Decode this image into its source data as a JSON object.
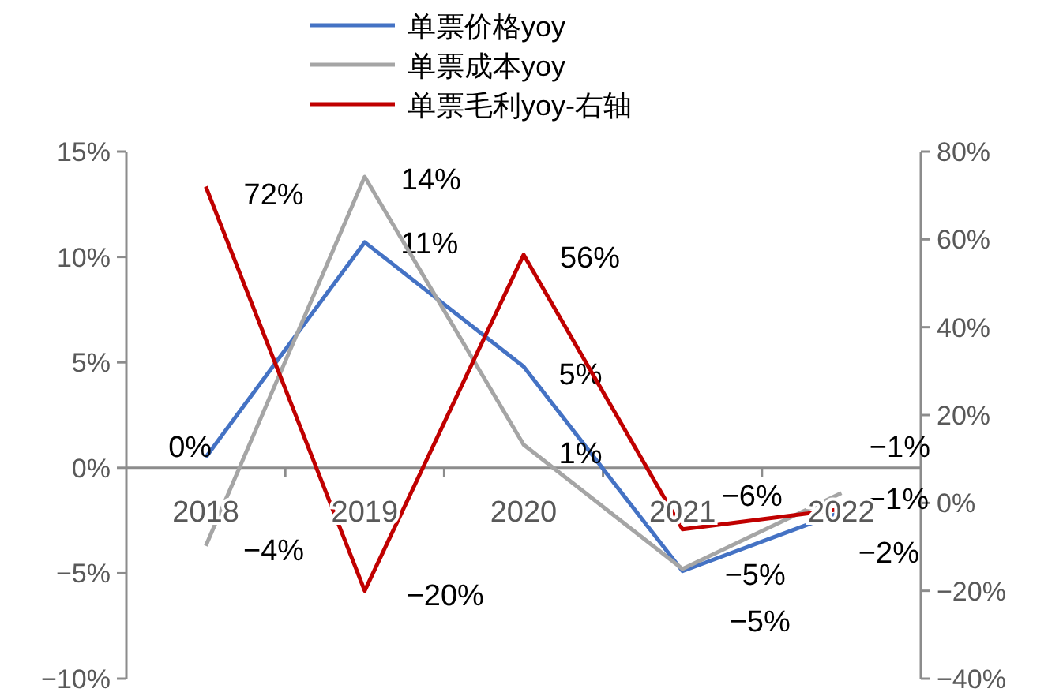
{
  "chart_data": {
    "type": "line",
    "categories": [
      "2018",
      "2019",
      "2020",
      "2021",
      "2022"
    ],
    "series": [
      {
        "name": "单票价格yoy",
        "color": "#4472c4",
        "values": [
          0.5,
          10.7,
          4.8,
          -4.9,
          -2.1
        ],
        "value_labels": [
          "0%",
          "11%",
          "5%",
          "−5%",
          "−2%"
        ]
      },
      {
        "name": "单票成本yoy",
        "color": "#a5a5a5",
        "values": [
          -3.7,
          13.8,
          1.1,
          -4.8,
          -1.2
        ],
        "value_labels": [
          "−4%",
          "14%",
          "1%",
          "−5%",
          "−1%"
        ]
      },
      {
        "name": "单票毛利yoy-右轴",
        "color": "#c00000",
        "axis": "y2",
        "values": [
          72,
          -20,
          56.5,
          -6,
          -1.4
        ],
        "value_labels": [
          "72%",
          "−20%",
          "56%",
          "−6%",
          "−1%"
        ]
      }
    ],
    "ylim": [
      -10,
      15
    ],
    "yticks": [
      {
        "value": -10,
        "label": "−10%"
      },
      {
        "value": -5,
        "label": "−5%"
      },
      {
        "value": 0,
        "label": "0%"
      },
      {
        "value": 5,
        "label": "5%"
      },
      {
        "value": 10,
        "label": "10%"
      },
      {
        "value": 15,
        "label": "15%"
      }
    ],
    "y2lim": [
      -40,
      80
    ],
    "y2ticks": [
      {
        "value": -40,
        "label": "−40%"
      },
      {
        "value": -20,
        "label": "−20%"
      },
      {
        "value": 0,
        "label": "0%"
      },
      {
        "value": 20,
        "label": "20%"
      },
      {
        "value": 40,
        "label": "40%"
      },
      {
        "value": 60,
        "label": "60%"
      },
      {
        "value": 80,
        "label": "80%"
      }
    ],
    "legend": "top",
    "grid": false,
    "marker": "none",
    "line_style": "solid"
  }
}
